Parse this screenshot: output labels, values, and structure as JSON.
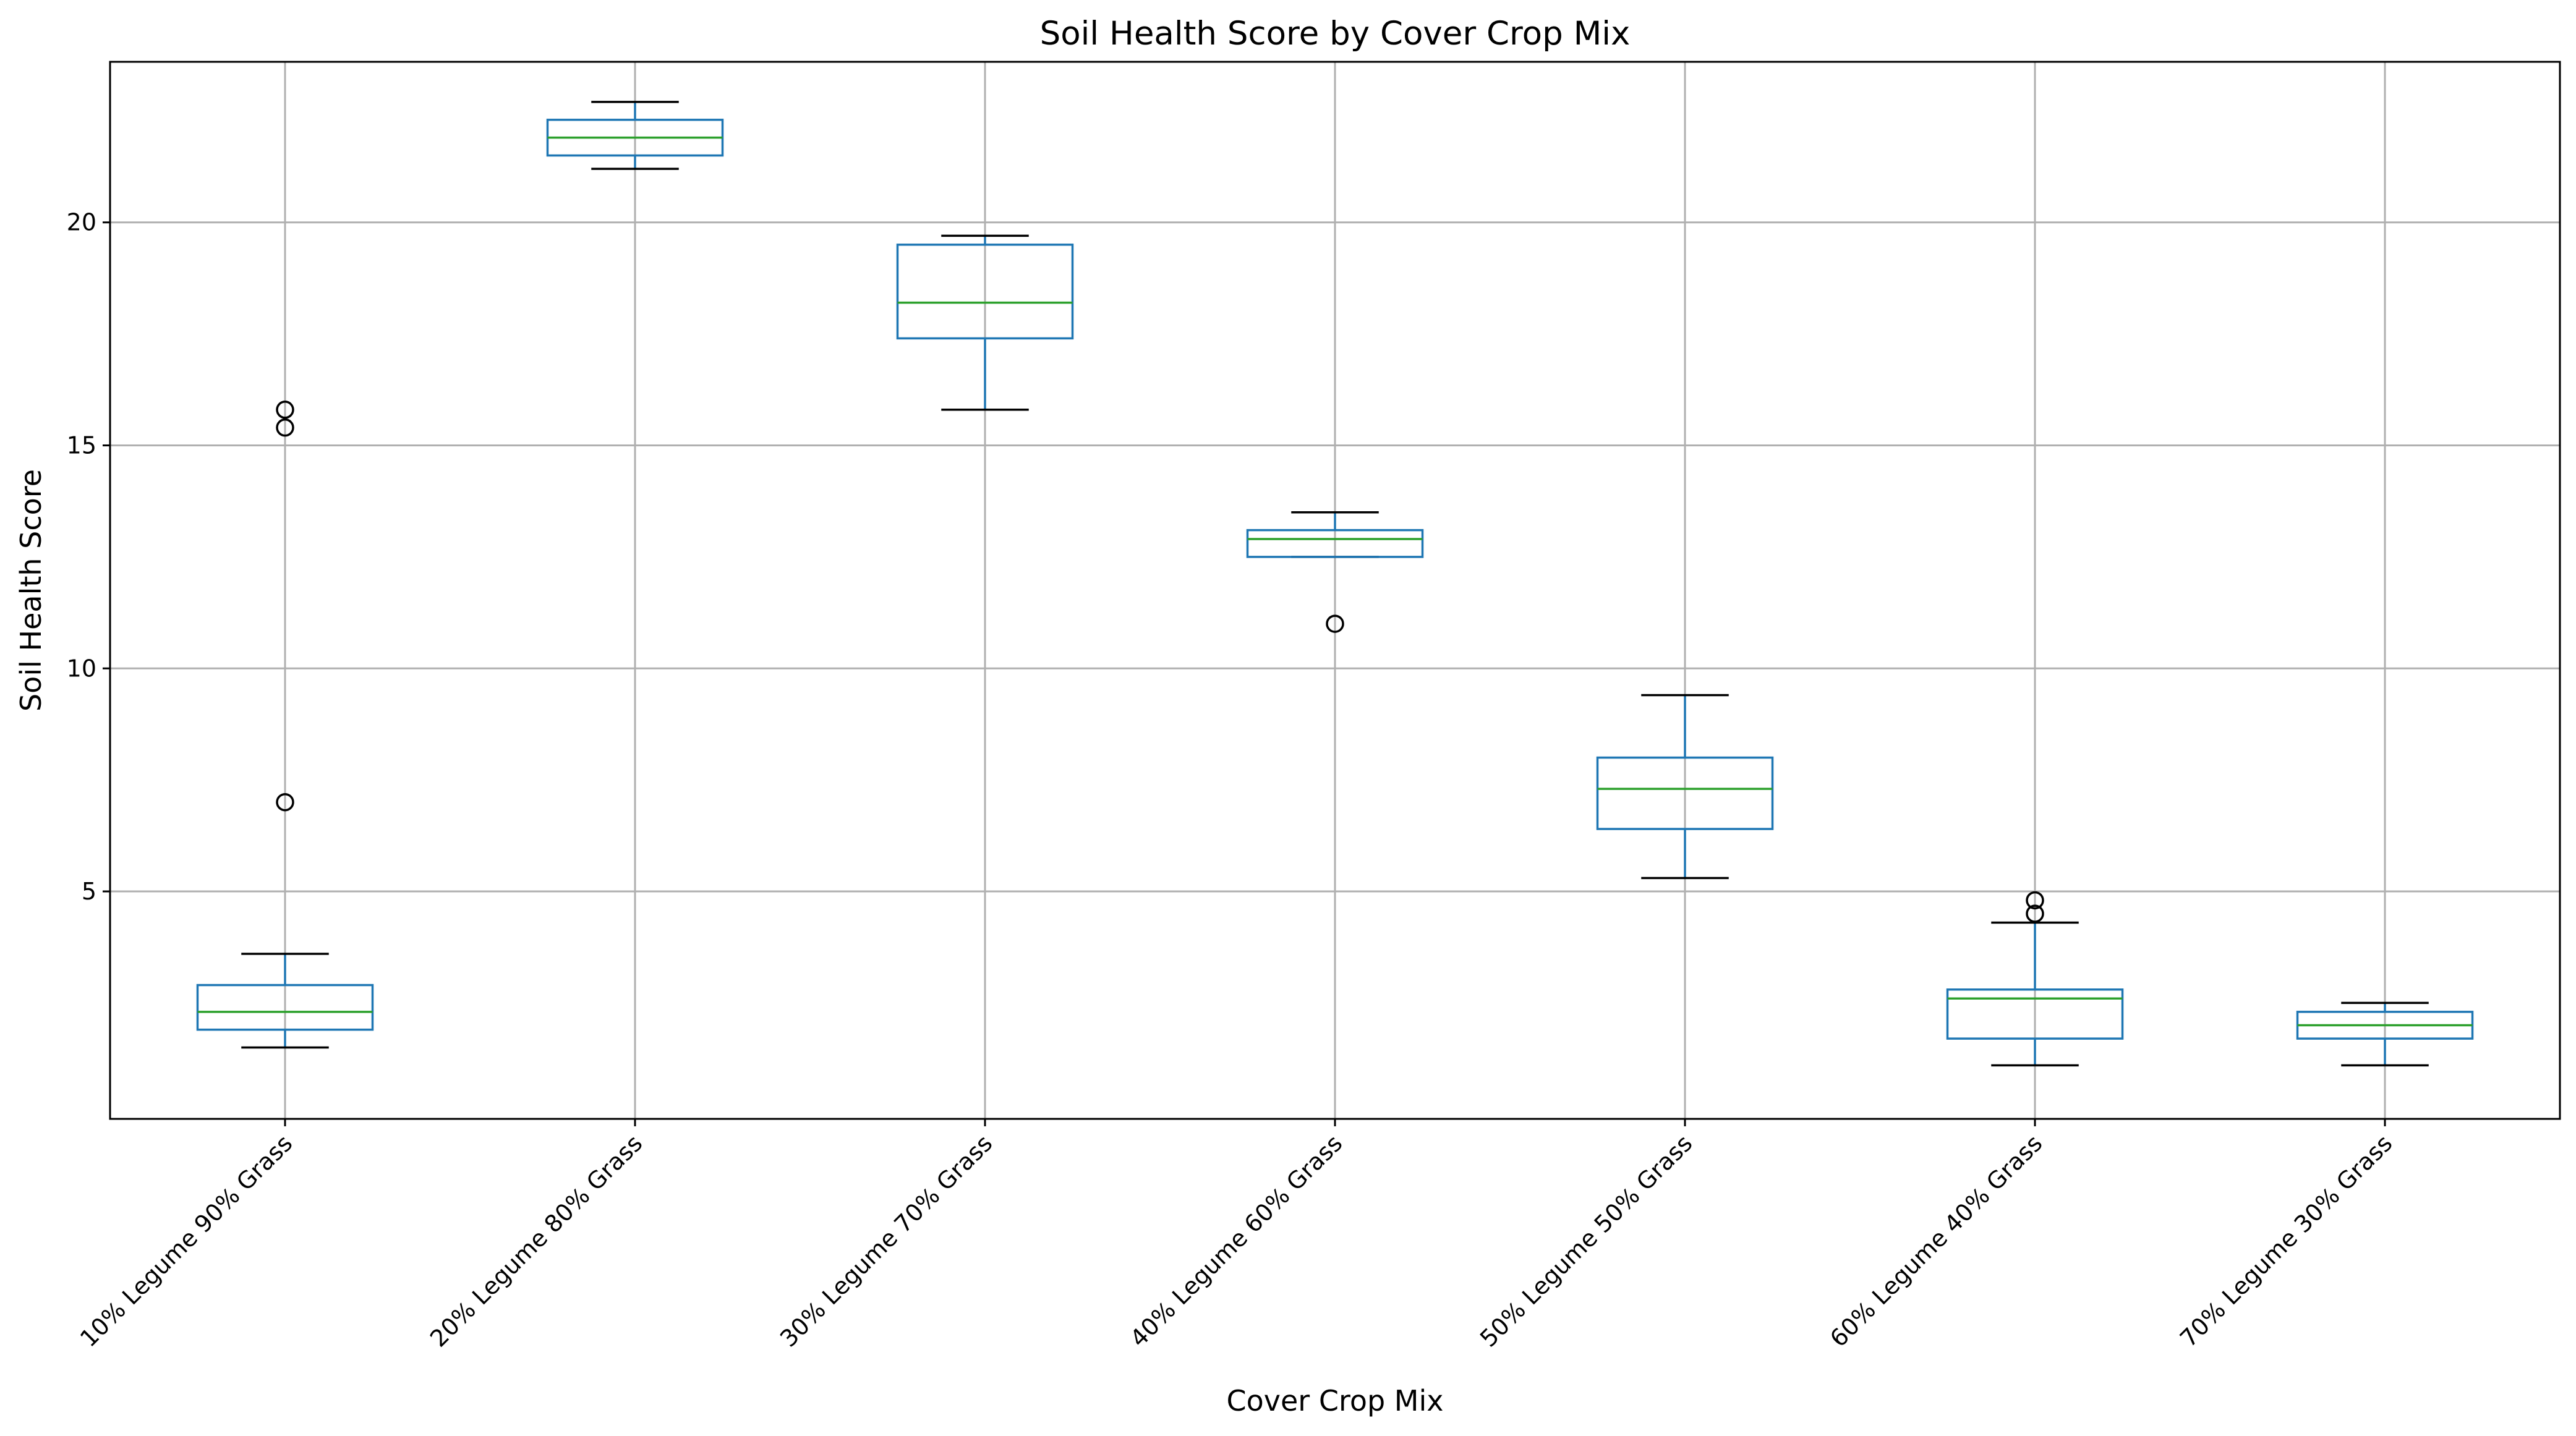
{
  "chart_data": {
    "type": "box",
    "title": "Soil Health Score by Cover Crop Mix",
    "xlabel": "Cover Crop Mix",
    "ylabel": "Soil Health Score",
    "ylim": [
      -0.1,
      23.6
    ],
    "yticks": [
      5,
      10,
      15,
      20
    ],
    "grid": true,
    "categories": [
      "10% Legume 90% Grass",
      "20% Legume 80% Grass",
      "30% Legume 70% Grass",
      "40% Legume 60% Grass",
      "50% Legume 50% Grass",
      "60% Legume 40% Grass",
      "70% Legume 30% Grass"
    ],
    "boxes": [
      {
        "whisker_low": 1.5,
        "q1": 1.9,
        "median": 2.3,
        "q3": 2.9,
        "whisker_high": 3.6,
        "fliers": [
          7.0,
          15.4,
          15.8
        ]
      },
      {
        "whisker_low": 21.2,
        "q1": 21.5,
        "median": 21.9,
        "q3": 22.3,
        "whisker_high": 22.7,
        "fliers": []
      },
      {
        "whisker_low": 15.8,
        "q1": 17.4,
        "median": 18.2,
        "q3": 19.5,
        "whisker_high": 19.7,
        "fliers": []
      },
      {
        "whisker_low": 12.5,
        "q1": 12.5,
        "median": 12.9,
        "q3": 13.1,
        "whisker_high": 13.5,
        "fliers": [
          11.0
        ]
      },
      {
        "whisker_low": 5.3,
        "q1": 6.4,
        "median": 7.3,
        "q3": 8.0,
        "whisker_high": 9.4,
        "fliers": []
      },
      {
        "whisker_low": 1.1,
        "q1": 1.7,
        "median": 2.6,
        "q3": 2.8,
        "whisker_high": 4.3,
        "fliers": [
          4.5,
          4.8
        ]
      },
      {
        "whisker_low": 1.1,
        "q1": 1.7,
        "median": 2.0,
        "q3": 2.3,
        "whisker_high": 2.5,
        "fliers": []
      }
    ]
  }
}
